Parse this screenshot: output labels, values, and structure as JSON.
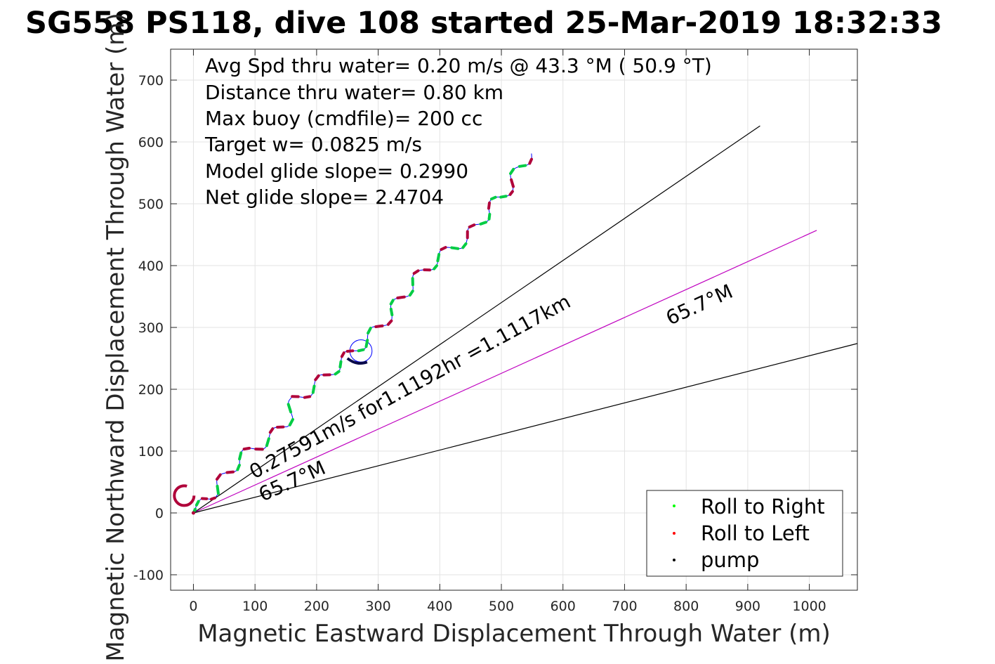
{
  "chart_data": {
    "type": "line",
    "title": "SG558 PS118, dive 108 started 25-Mar-2019 18:32:33",
    "xlabel": "Magnetic Eastward Displacement Through Water (m)",
    "ylabel": "Magnetic Northward Displacement Through Water (m)",
    "xlim": [
      -37,
      1078
    ],
    "ylim": [
      -125,
      750
    ],
    "xticks": [
      0,
      100,
      200,
      300,
      400,
      500,
      600,
      700,
      800,
      900,
      1000
    ],
    "yticks": [
      -100,
      0,
      100,
      200,
      300,
      400,
      500,
      600,
      700
    ],
    "grid": true,
    "info_lines": [
      "Avg Spd thru water=  0.20 m/s @  43.3 °M ( 50.9 °T)",
      "Distance thru water=  0.80 km",
      "Max buoy (cmdfile)= 200 cc",
      "Target w= 0.0825 m/s",
      "Model glide slope= 0.2990",
      "Net glide slope= 2.4704"
    ],
    "annotations": {
      "speed_label": "0.27591m/s for1.1192hr =1.1117km",
      "heading_label_near": "65.7°M",
      "heading_label_far": "65.7°M"
    },
    "reference_lines": [
      {
        "name": "upper-bound",
        "x": [
          0,
          920
        ],
        "y": [
          0,
          626
        ],
        "color": "#000000"
      },
      {
        "name": "heading",
        "x": [
          0,
          1012
        ],
        "y": [
          0,
          457
        ],
        "color": "#bf00bf"
      },
      {
        "name": "lower-bound",
        "x": [
          0,
          1078
        ],
        "y": [
          0,
          274
        ],
        "color": "#000000"
      }
    ],
    "track": {
      "color": "#0000ff",
      "base": [
        [
          0,
          0
        ],
        [
          15,
          22
        ],
        [
          35,
          35
        ],
        [
          55,
          65
        ],
        [
          75,
          87
        ],
        [
          100,
          105
        ],
        [
          130,
          125
        ],
        [
          150,
          145
        ],
        [
          165,
          182
        ],
        [
          190,
          200
        ],
        [
          215,
          220
        ],
        [
          235,
          240
        ],
        [
          255,
          256
        ],
        [
          275,
          275
        ],
        [
          300,
          298
        ],
        [
          320,
          322
        ],
        [
          335,
          345
        ],
        [
          355,
          370
        ],
        [
          375,
          393
        ],
        [
          395,
          410
        ],
        [
          420,
          428
        ],
        [
          445,
          445
        ],
        [
          465,
          468
        ],
        [
          480,
          492
        ],
        [
          500,
          510
        ],
        [
          515,
          530
        ],
        [
          530,
          560
        ],
        [
          548,
          582
        ]
      ],
      "wiggle_amplitude": 9,
      "wiggle_period": 58,
      "loop": {
        "center": [
          272,
          262
        ],
        "radius": 18
      },
      "start_hook": {
        "center": [
          -15,
          28
        ],
        "radius": 16
      }
    },
    "legend": {
      "placement": "bottom-right",
      "entries": [
        {
          "label": "Roll to Right",
          "color": "#00ff00"
        },
        {
          "label": "Roll to Left",
          "color": "#ff0000"
        },
        {
          "label": "pump",
          "color": "#000000"
        }
      ]
    }
  }
}
